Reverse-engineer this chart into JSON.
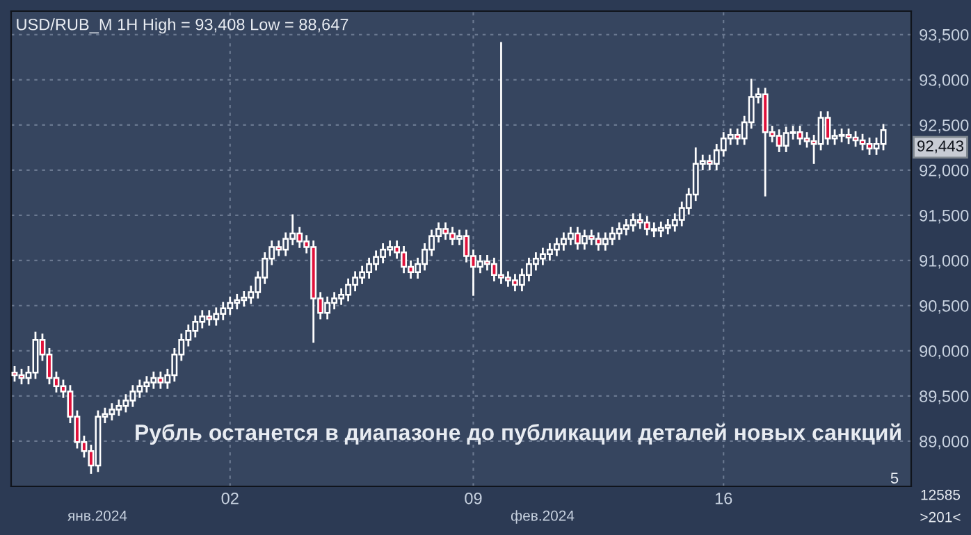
{
  "chart_data": {
    "type": "candlestick",
    "title": "USD/RUB_M 1H High = 93,408 Low = 88,647",
    "categories": [
      null,
      null,
      null,
      null,
      null,
      null,
      null,
      null,
      null,
      null,
      null,
      null,
      null,
      null,
      null,
      null,
      null,
      null,
      null,
      null,
      null,
      null,
      null,
      null,
      null,
      null,
      null,
      null,
      null,
      null,
      null,
      "02",
      null,
      null,
      null,
      null,
      null,
      null,
      null,
      null,
      null,
      null,
      null,
      null,
      null,
      null,
      null,
      null,
      null,
      null,
      null,
      null,
      null,
      null,
      null,
      null,
      null,
      null,
      null,
      null,
      null,
      null,
      null,
      null,
      null,
      null,
      "09",
      null,
      null,
      null,
      null,
      null,
      null,
      null,
      null,
      null,
      null,
      null,
      null,
      null,
      null,
      null,
      null,
      null,
      null,
      null,
      null,
      null,
      null,
      null,
      null,
      null,
      null,
      null,
      null,
      null,
      null,
      null,
      null,
      null,
      null,
      null,
      "16",
      null,
      null,
      null,
      null,
      null,
      null,
      null,
      null,
      null,
      null,
      null,
      null,
      null,
      null,
      null,
      null,
      null,
      null,
      null,
      null,
      null,
      null,
      null
    ],
    "ohlc": [
      [
        89760,
        89820,
        89670,
        89730
      ],
      [
        89730,
        89790,
        89640,
        89700
      ],
      [
        89700,
        89820,
        89640,
        89760
      ],
      [
        89760,
        90200,
        89700,
        90120
      ],
      [
        90120,
        90180,
        89900,
        89960
      ],
      [
        89960,
        90020,
        89640,
        89700
      ],
      [
        89700,
        89760,
        89550,
        89610
      ],
      [
        89610,
        89670,
        89490,
        89550
      ],
      [
        89550,
        89610,
        89210,
        89270
      ],
      [
        89270,
        89330,
        88930,
        88990
      ],
      [
        88990,
        89050,
        88830,
        88890
      ],
      [
        88890,
        88950,
        88650,
        88730
      ],
      [
        88730,
        89330,
        88670,
        89270
      ],
      [
        89270,
        89360,
        89210,
        89300
      ],
      [
        89300,
        89410,
        89240,
        89350
      ],
      [
        89350,
        89450,
        89290,
        89390
      ],
      [
        89390,
        89510,
        89330,
        89450
      ],
      [
        89450,
        89610,
        89390,
        89550
      ],
      [
        89550,
        89670,
        89490,
        89610
      ],
      [
        89610,
        89710,
        89550,
        89650
      ],
      [
        89650,
        89760,
        89590,
        89700
      ],
      [
        89700,
        89760,
        89590,
        89650
      ],
      [
        89650,
        89790,
        89590,
        89730
      ],
      [
        89730,
        90020,
        89670,
        89960
      ],
      [
        89960,
        90180,
        89900,
        90120
      ],
      [
        90120,
        90280,
        90060,
        90220
      ],
      [
        90220,
        90380,
        90160,
        90320
      ],
      [
        90320,
        90440,
        90260,
        90380
      ],
      [
        90380,
        90440,
        90290,
        90350
      ],
      [
        90350,
        90470,
        90290,
        90410
      ],
      [
        90410,
        90530,
        90350,
        90470
      ],
      [
        90470,
        90590,
        90410,
        90530
      ],
      [
        90530,
        90620,
        90470,
        90560
      ],
      [
        90560,
        90650,
        90500,
        90590
      ],
      [
        90590,
        90710,
        90530,
        90650
      ],
      [
        90650,
        90870,
        90590,
        90810
      ],
      [
        90810,
        91080,
        90750,
        91020
      ],
      [
        91020,
        91210,
        90960,
        91150
      ],
      [
        91150,
        91210,
        91060,
        91120
      ],
      [
        91120,
        91300,
        91060,
        91240
      ],
      [
        91240,
        91500,
        91180,
        91300
      ],
      [
        91300,
        91360,
        91150,
        91210
      ],
      [
        91210,
        91270,
        91090,
        91150
      ],
      [
        91150,
        91210,
        90100,
        90580
      ],
      [
        90580,
        90640,
        90360,
        90420
      ],
      [
        90420,
        90590,
        90360,
        90530
      ],
      [
        90530,
        90640,
        90470,
        90580
      ],
      [
        90580,
        90680,
        90520,
        90620
      ],
      [
        90620,
        90790,
        90560,
        90730
      ],
      [
        90730,
        90870,
        90670,
        90810
      ],
      [
        90810,
        90930,
        90750,
        90870
      ],
      [
        90870,
        91020,
        90810,
        90960
      ],
      [
        90960,
        91100,
        90900,
        91040
      ],
      [
        91040,
        91180,
        90980,
        91120
      ],
      [
        91120,
        91210,
        91060,
        91150
      ],
      [
        91150,
        91210,
        91030,
        91090
      ],
      [
        91090,
        91150,
        90870,
        90930
      ],
      [
        90930,
        90990,
        90810,
        90870
      ],
      [
        90870,
        91020,
        90810,
        90960
      ],
      [
        90960,
        91180,
        90900,
        91120
      ],
      [
        91120,
        91330,
        91060,
        91270
      ],
      [
        91270,
        91410,
        91210,
        91350
      ],
      [
        91350,
        91410,
        91240,
        91300
      ],
      [
        91300,
        91360,
        91180,
        91240
      ],
      [
        91240,
        91330,
        91180,
        91270
      ],
      [
        91270,
        91330,
        90990,
        91050
      ],
      [
        91050,
        91110,
        90620,
        90930
      ],
      [
        90930,
        91050,
        90870,
        90990
      ],
      [
        90990,
        91050,
        90900,
        90960
      ],
      [
        90960,
        91020,
        90780,
        90840
      ],
      [
        90840,
        93408,
        90750,
        90810
      ],
      [
        90810,
        90870,
        90720,
        90780
      ],
      [
        90780,
        90840,
        90670,
        90730
      ],
      [
        90730,
        90900,
        90670,
        90840
      ],
      [
        90840,
        91020,
        90780,
        90960
      ],
      [
        90960,
        91080,
        90900,
        91020
      ],
      [
        91020,
        91130,
        90960,
        91070
      ],
      [
        91070,
        91180,
        91010,
        91120
      ],
      [
        91120,
        91240,
        91060,
        91180
      ],
      [
        91180,
        91300,
        91120,
        91240
      ],
      [
        91240,
        91360,
        91180,
        91300
      ],
      [
        91300,
        91360,
        91130,
        91190
      ],
      [
        91190,
        91330,
        91130,
        91270
      ],
      [
        91270,
        91330,
        91180,
        91240
      ],
      [
        91240,
        91300,
        91120,
        91180
      ],
      [
        91180,
        91300,
        91120,
        91240
      ],
      [
        91240,
        91360,
        91180,
        91300
      ],
      [
        91300,
        91410,
        91240,
        91350
      ],
      [
        91350,
        91450,
        91290,
        91390
      ],
      [
        91390,
        91510,
        91330,
        91450
      ],
      [
        91450,
        91510,
        91360,
        91420
      ],
      [
        91420,
        91480,
        91290,
        91350
      ],
      [
        91350,
        91410,
        91270,
        91330
      ],
      [
        91330,
        91420,
        91270,
        91360
      ],
      [
        91360,
        91450,
        91300,
        91390
      ],
      [
        91390,
        91510,
        91330,
        91450
      ],
      [
        91450,
        91640,
        91390,
        91580
      ],
      [
        91580,
        91790,
        91520,
        91730
      ],
      [
        91730,
        92240,
        91670,
        92070
      ],
      [
        92070,
        92160,
        92010,
        92100
      ],
      [
        92100,
        92160,
        92010,
        92070
      ],
      [
        92070,
        92280,
        92010,
        92220
      ],
      [
        92220,
        92410,
        92160,
        92350
      ],
      [
        92350,
        92450,
        92290,
        92390
      ],
      [
        92390,
        92450,
        92290,
        92350
      ],
      [
        92350,
        92590,
        92290,
        92530
      ],
      [
        92530,
        93000,
        92470,
        92810
      ],
      [
        92810,
        92900,
        92750,
        92840
      ],
      [
        92840,
        92900,
        91720,
        92420
      ],
      [
        92420,
        92480,
        92320,
        92380
      ],
      [
        92380,
        92440,
        92210,
        92270
      ],
      [
        92270,
        92470,
        92210,
        92410
      ],
      [
        92410,
        92480,
        92350,
        92420
      ],
      [
        92420,
        92480,
        92290,
        92350
      ],
      [
        92350,
        92410,
        92260,
        92320
      ],
      [
        92320,
        92380,
        92080,
        92290
      ],
      [
        92290,
        92640,
        92230,
        92580
      ],
      [
        92580,
        92640,
        92290,
        92350
      ],
      [
        92350,
        92440,
        92290,
        92380
      ],
      [
        92380,
        92450,
        92320,
        92390
      ],
      [
        92390,
        92450,
        92300,
        92360
      ],
      [
        92360,
        92420,
        92270,
        92330
      ],
      [
        92330,
        92390,
        92230,
        92290
      ],
      [
        92290,
        92350,
        92180,
        92240
      ],
      [
        92240,
        92350,
        92180,
        92290
      ],
      [
        92290,
        92500,
        92230,
        92443
      ]
    ],
    "color": "#ffffff",
    "ylim": [
      88500,
      93760
    ],
    "yticks": [
      {
        "value": 89000,
        "label": "89,000"
      },
      {
        "value": 89500,
        "label": "89,500"
      },
      {
        "value": 90000,
        "label": "90,000"
      },
      {
        "value": 90500,
        "label": "90,500"
      },
      {
        "value": 91000,
        "label": "91,000"
      },
      {
        "value": 91500,
        "label": "91,500"
      },
      {
        "value": 92000,
        "label": "92,000"
      },
      {
        "value": 92500,
        "label": "92,500"
      },
      {
        "value": 93000,
        "label": "93,000"
      },
      {
        "value": 93500,
        "label": "93,500"
      }
    ],
    "grid": true,
    "annotations": [
      "Рубль останется в диапазоне до публикации деталей новых санкций",
      "янв.2024",
      "фев.2024",
      "5",
      "12585",
      ">201<",
      "92,443"
    ]
  }
}
